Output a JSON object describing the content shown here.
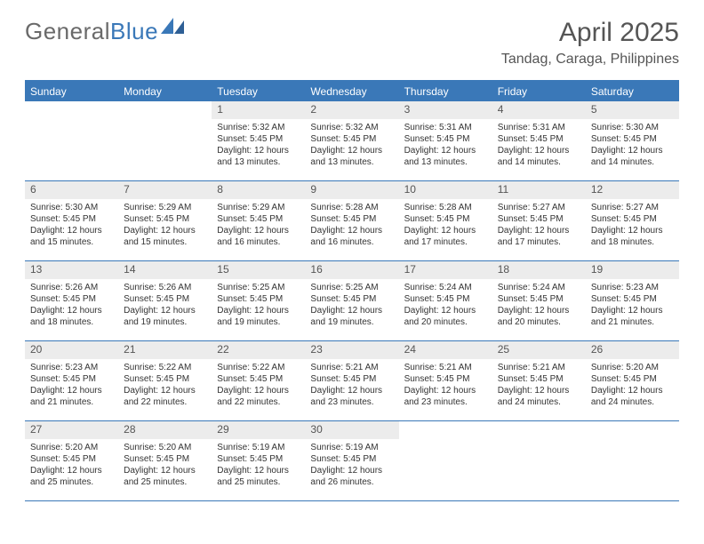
{
  "brand": {
    "part1": "General",
    "part2": "Blue"
  },
  "title": "April 2025",
  "location": "Tandag, Caraga, Philippines",
  "header_color": "#3a78b8",
  "daynum_bg": "#ececec",
  "text_color": "#333333",
  "title_color": "#555555",
  "weekdays": [
    "Sunday",
    "Monday",
    "Tuesday",
    "Wednesday",
    "Thursday",
    "Friday",
    "Saturday"
  ],
  "weeks": [
    [
      {
        "n": "",
        "sr": "",
        "ss": "",
        "dl": ""
      },
      {
        "n": "",
        "sr": "",
        "ss": "",
        "dl": ""
      },
      {
        "n": "1",
        "sr": "Sunrise: 5:32 AM",
        "ss": "Sunset: 5:45 PM",
        "dl": "Daylight: 12 hours and 13 minutes."
      },
      {
        "n": "2",
        "sr": "Sunrise: 5:32 AM",
        "ss": "Sunset: 5:45 PM",
        "dl": "Daylight: 12 hours and 13 minutes."
      },
      {
        "n": "3",
        "sr": "Sunrise: 5:31 AM",
        "ss": "Sunset: 5:45 PM",
        "dl": "Daylight: 12 hours and 13 minutes."
      },
      {
        "n": "4",
        "sr": "Sunrise: 5:31 AM",
        "ss": "Sunset: 5:45 PM",
        "dl": "Daylight: 12 hours and 14 minutes."
      },
      {
        "n": "5",
        "sr": "Sunrise: 5:30 AM",
        "ss": "Sunset: 5:45 PM",
        "dl": "Daylight: 12 hours and 14 minutes."
      }
    ],
    [
      {
        "n": "6",
        "sr": "Sunrise: 5:30 AM",
        "ss": "Sunset: 5:45 PM",
        "dl": "Daylight: 12 hours and 15 minutes."
      },
      {
        "n": "7",
        "sr": "Sunrise: 5:29 AM",
        "ss": "Sunset: 5:45 PM",
        "dl": "Daylight: 12 hours and 15 minutes."
      },
      {
        "n": "8",
        "sr": "Sunrise: 5:29 AM",
        "ss": "Sunset: 5:45 PM",
        "dl": "Daylight: 12 hours and 16 minutes."
      },
      {
        "n": "9",
        "sr": "Sunrise: 5:28 AM",
        "ss": "Sunset: 5:45 PM",
        "dl": "Daylight: 12 hours and 16 minutes."
      },
      {
        "n": "10",
        "sr": "Sunrise: 5:28 AM",
        "ss": "Sunset: 5:45 PM",
        "dl": "Daylight: 12 hours and 17 minutes."
      },
      {
        "n": "11",
        "sr": "Sunrise: 5:27 AM",
        "ss": "Sunset: 5:45 PM",
        "dl": "Daylight: 12 hours and 17 minutes."
      },
      {
        "n": "12",
        "sr": "Sunrise: 5:27 AM",
        "ss": "Sunset: 5:45 PM",
        "dl": "Daylight: 12 hours and 18 minutes."
      }
    ],
    [
      {
        "n": "13",
        "sr": "Sunrise: 5:26 AM",
        "ss": "Sunset: 5:45 PM",
        "dl": "Daylight: 12 hours and 18 minutes."
      },
      {
        "n": "14",
        "sr": "Sunrise: 5:26 AM",
        "ss": "Sunset: 5:45 PM",
        "dl": "Daylight: 12 hours and 19 minutes."
      },
      {
        "n": "15",
        "sr": "Sunrise: 5:25 AM",
        "ss": "Sunset: 5:45 PM",
        "dl": "Daylight: 12 hours and 19 minutes."
      },
      {
        "n": "16",
        "sr": "Sunrise: 5:25 AM",
        "ss": "Sunset: 5:45 PM",
        "dl": "Daylight: 12 hours and 19 minutes."
      },
      {
        "n": "17",
        "sr": "Sunrise: 5:24 AM",
        "ss": "Sunset: 5:45 PM",
        "dl": "Daylight: 12 hours and 20 minutes."
      },
      {
        "n": "18",
        "sr": "Sunrise: 5:24 AM",
        "ss": "Sunset: 5:45 PM",
        "dl": "Daylight: 12 hours and 20 minutes."
      },
      {
        "n": "19",
        "sr": "Sunrise: 5:23 AM",
        "ss": "Sunset: 5:45 PM",
        "dl": "Daylight: 12 hours and 21 minutes."
      }
    ],
    [
      {
        "n": "20",
        "sr": "Sunrise: 5:23 AM",
        "ss": "Sunset: 5:45 PM",
        "dl": "Daylight: 12 hours and 21 minutes."
      },
      {
        "n": "21",
        "sr": "Sunrise: 5:22 AM",
        "ss": "Sunset: 5:45 PM",
        "dl": "Daylight: 12 hours and 22 minutes."
      },
      {
        "n": "22",
        "sr": "Sunrise: 5:22 AM",
        "ss": "Sunset: 5:45 PM",
        "dl": "Daylight: 12 hours and 22 minutes."
      },
      {
        "n": "23",
        "sr": "Sunrise: 5:21 AM",
        "ss": "Sunset: 5:45 PM",
        "dl": "Daylight: 12 hours and 23 minutes."
      },
      {
        "n": "24",
        "sr": "Sunrise: 5:21 AM",
        "ss": "Sunset: 5:45 PM",
        "dl": "Daylight: 12 hours and 23 minutes."
      },
      {
        "n": "25",
        "sr": "Sunrise: 5:21 AM",
        "ss": "Sunset: 5:45 PM",
        "dl": "Daylight: 12 hours and 24 minutes."
      },
      {
        "n": "26",
        "sr": "Sunrise: 5:20 AM",
        "ss": "Sunset: 5:45 PM",
        "dl": "Daylight: 12 hours and 24 minutes."
      }
    ],
    [
      {
        "n": "27",
        "sr": "Sunrise: 5:20 AM",
        "ss": "Sunset: 5:45 PM",
        "dl": "Daylight: 12 hours and 25 minutes."
      },
      {
        "n": "28",
        "sr": "Sunrise: 5:20 AM",
        "ss": "Sunset: 5:45 PM",
        "dl": "Daylight: 12 hours and 25 minutes."
      },
      {
        "n": "29",
        "sr": "Sunrise: 5:19 AM",
        "ss": "Sunset: 5:45 PM",
        "dl": "Daylight: 12 hours and 25 minutes."
      },
      {
        "n": "30",
        "sr": "Sunrise: 5:19 AM",
        "ss": "Sunset: 5:45 PM",
        "dl": "Daylight: 12 hours and 26 minutes."
      },
      {
        "n": "",
        "sr": "",
        "ss": "",
        "dl": ""
      },
      {
        "n": "",
        "sr": "",
        "ss": "",
        "dl": ""
      },
      {
        "n": "",
        "sr": "",
        "ss": "",
        "dl": ""
      }
    ]
  ]
}
